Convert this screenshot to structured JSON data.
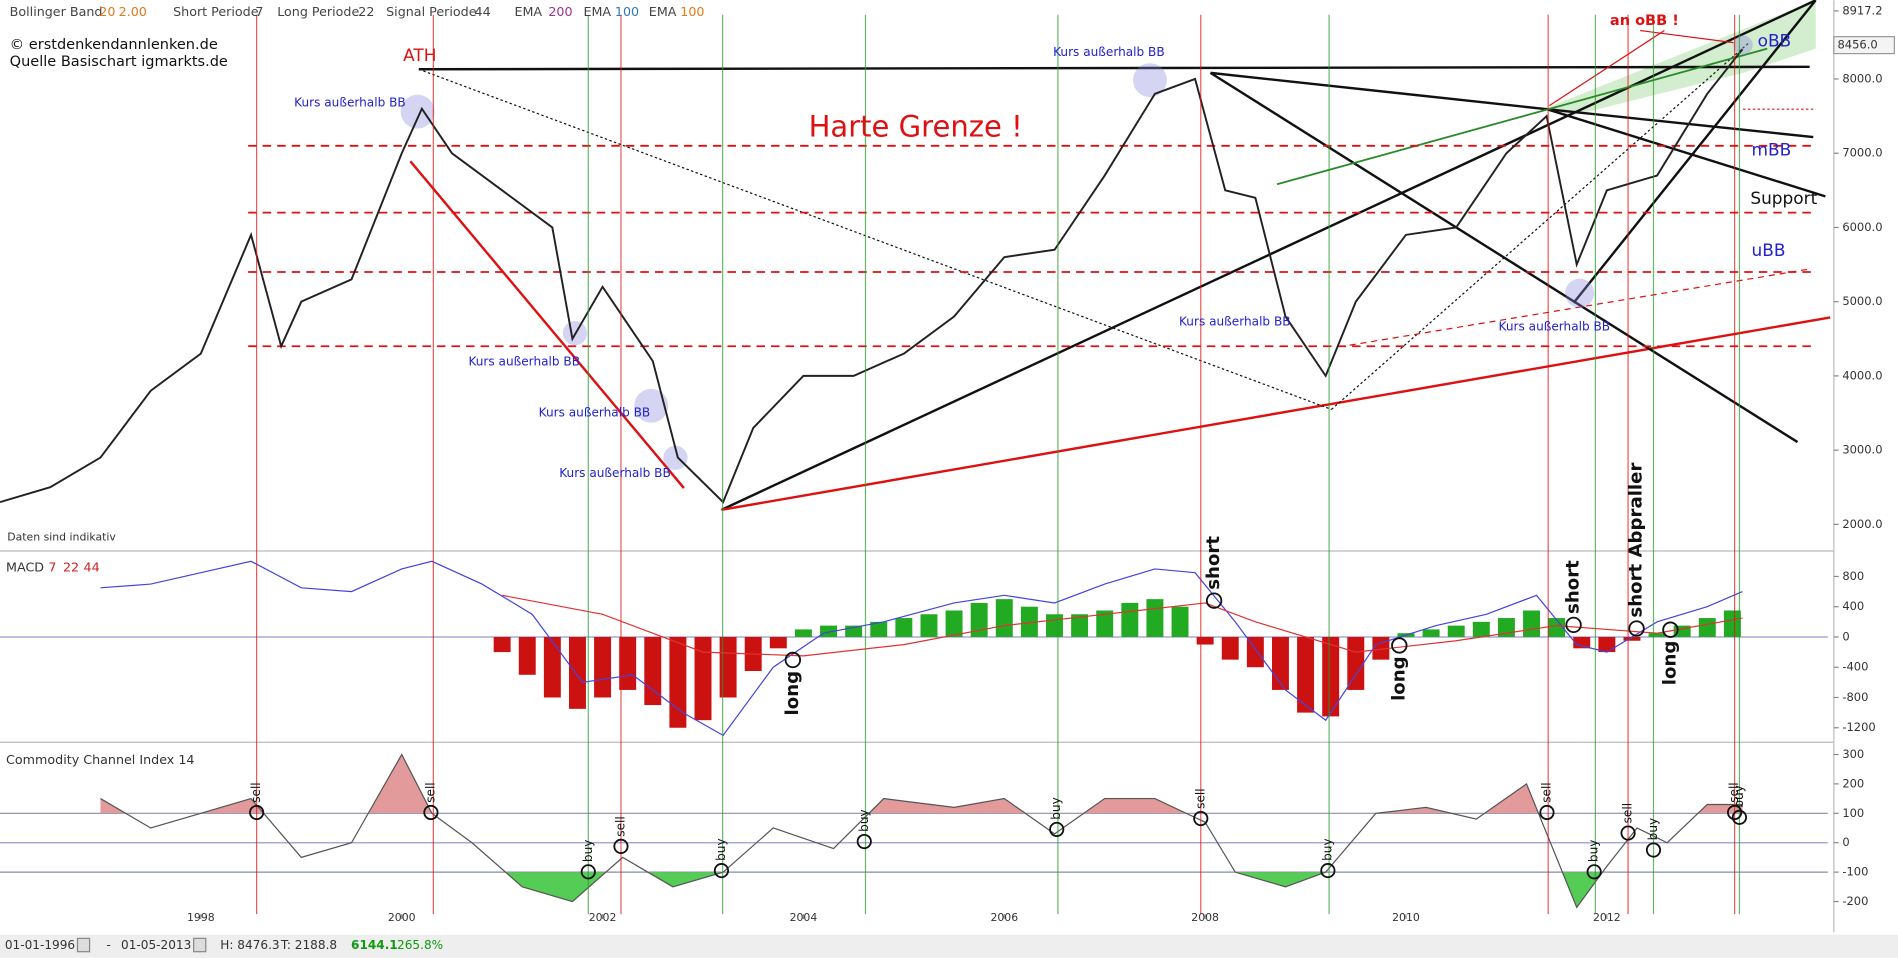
{
  "header": {
    "bollinger": "Bollinger Band",
    "bb_period": "20",
    "bb_dev": "2.00",
    "short_label": "Short Periode",
    "short_val": "7",
    "long_label": "Long Periode",
    "long_val": "22",
    "signal_label": "Signal Periode",
    "signal_val": "44",
    "ema1": "EMA",
    "ema1_val": "200",
    "ema2": "EMA",
    "ema2_val": "100",
    "ema3": "EMA",
    "ema3_val": "100",
    "copyright": "© erstdenkendannlenken.de",
    "source": "Quelle Basischart igmarkts.de",
    "disclaimer": "Daten sind indikativ"
  },
  "annotations": {
    "ath": "ATH",
    "harte_grenze": "Harte Grenze !",
    "an_obb": "an oBB !",
    "obb": "oBB",
    "mbb": "mBB",
    "ubb": "uBB",
    "support": "Support",
    "kurs": [
      "Kurs außerhalb BB",
      "Kurs außerhalb BB",
      "Kurs außerhalb BB",
      "Kurs außerhalb BB",
      "Kurs außerhalb BB",
      "Kurs außerhalb BB",
      "Kurs außerhalb BB"
    ],
    "macd_signals": [
      "long",
      "short",
      "long",
      "short",
      "short Abpraller",
      "long"
    ],
    "cci_signals": [
      "sell",
      "sell",
      "buy",
      "sell",
      "buy",
      "buy",
      "buy",
      "sell",
      "buy",
      "sell",
      "buy",
      "sell",
      "buy",
      "sell",
      "buy"
    ]
  },
  "chart_data": [
    {
      "type": "line",
      "color": "#222222",
      "x": [
        1996.0,
        1996.5,
        1997.0,
        1997.5,
        1998.0,
        1998.5,
        1998.8,
        1999.0,
        1999.5,
        2000.0,
        2000.2,
        2000.5,
        2001.0,
        2001.5,
        2001.7,
        2002.0,
        2002.5,
        2002.75,
        2003.2,
        2003.5,
        2004.0,
        2004.5,
        2005.0,
        2005.5,
        2006.0,
        2006.5,
        2007.0,
        2007.5,
        2007.9,
        2008.2,
        2008.5,
        2008.8,
        2009.2,
        2009.5,
        2010.0,
        2010.5,
        2011.0,
        2011.4,
        2011.7,
        2012.0,
        2012.5,
        2013.0,
        2013.35
      ],
      "values": [
        2300,
        2500,
        2900,
        3800,
        4300,
        5900,
        4400,
        5000,
        5300,
        7000,
        7600,
        7000,
        6500,
        6000,
        4500,
        5200,
        4200,
        2900,
        2300,
        3300,
        4000,
        4000,
        4300,
        4800,
        5600,
        5700,
        6700,
        7800,
        8000,
        6500,
        6400,
        4800,
        4000,
        5000,
        5900,
        6000,
        7000,
        7500,
        5500,
        6500,
        6700,
        7800,
        8400
      ],
      "xlim": [
        1996,
        2014.2
      ],
      "xticks": [
        1998,
        2000,
        2002,
        2004,
        2006,
        2008,
        2010,
        2012
      ],
      "ylim": [
        1690,
        8930
      ],
      "yticks": [
        {
          "value": 2000,
          "label": "2000.0"
        },
        {
          "value": 3000,
          "label": "3000.0"
        },
        {
          "value": 4000,
          "label": "4000.0"
        },
        {
          "value": 5000,
          "label": "5000.0"
        },
        {
          "value": 6000,
          "label": "6000.0"
        },
        {
          "value": 7000,
          "label": "7000.0"
        },
        {
          "value": 8000,
          "label": "8000.0"
        },
        {
          "value": 8917.2,
          "label": "8917.2"
        }
      ],
      "last_price": {
        "value": 8456,
        "label": "8456.0"
      },
      "hlines": [
        7100,
        6200,
        5400,
        4400
      ],
      "footer": {
        "from": "01-01-1996",
        "dash": "-",
        "to": "01-05-2013",
        "high": "H: 8476.3",
        "low": "T: 2188.8",
        "change": "6144.1",
        "change_pct": "265.8%"
      }
    },
    {
      "type": "bar",
      "title": "MACD",
      "params": [
        "7",
        "22",
        "44"
      ],
      "pos_color": "#22aa22",
      "neg_color": "#cc1111",
      "x": [
        2001.0,
        2001.25,
        2001.5,
        2001.75,
        2002.0,
        2002.25,
        2002.5,
        2002.75,
        2003.0,
        2003.25,
        2003.5,
        2003.75,
        2004.0,
        2004.25,
        2004.5,
        2004.75,
        2005.0,
        2005.25,
        2005.5,
        2005.75,
        2006.0,
        2006.25,
        2006.5,
        2006.75,
        2007.0,
        2007.25,
        2007.5,
        2007.75,
        2008.0,
        2008.25,
        2008.5,
        2008.75,
        2009.0,
        2009.25,
        2009.5,
        2009.75,
        2010.0,
        2010.25,
        2010.5,
        2010.75,
        2011.0,
        2011.25,
        2011.5,
        2011.75,
        2012.0,
        2012.25,
        2012.5,
        2012.75,
        2013.0,
        2013.25
      ],
      "values": [
        -200,
        -500,
        -800,
        -950,
        -800,
        -700,
        -900,
        -1200,
        -1100,
        -800,
        -450,
        -150,
        100,
        150,
        150,
        200,
        250,
        300,
        350,
        450,
        500,
        400,
        300,
        300,
        350,
        450,
        500,
        400,
        -100,
        -300,
        -400,
        -700,
        -1000,
        -1050,
        -700,
        -300,
        50,
        100,
        150,
        200,
        250,
        350,
        250,
        -150,
        -200,
        -50,
        50,
        150,
        250,
        350
      ],
      "lines": [
        {
          "color": "#4444dd",
          "x": [
            1997.0,
            1997.5,
            1998.0,
            1998.5,
            1999.0,
            1999.5,
            2000.0,
            2000.3,
            2000.8,
            2001.3,
            2001.8,
            2002.3,
            2002.8,
            2003.2,
            2003.7,
            2004.2,
            2004.8,
            2005.5,
            2006.0,
            2006.5,
            2007.0,
            2007.5,
            2007.9,
            2008.3,
            2008.8,
            2009.2,
            2009.7,
            2010.3,
            2010.8,
            2011.3,
            2011.7,
            2012.0,
            2012.5,
            2013.0,
            2013.35
          ],
          "values": [
            650,
            700,
            850,
            1000,
            650,
            600,
            900,
            1000,
            700,
            300,
            -600,
            -500,
            -1000,
            -1300,
            -400,
            50,
            200,
            450,
            550,
            450,
            700,
            900,
            850,
            200,
            -700,
            -1100,
            -100,
            150,
            300,
            550,
            -100,
            -200,
            200,
            400,
            600
          ]
        },
        {
          "color": "#dd3333",
          "x": [
            2001.0,
            2002.0,
            2003.0,
            2004.0,
            2005.0,
            2006.0,
            2007.0,
            2008.0,
            2008.5,
            2009.5,
            2010.5,
            2011.5,
            2012.5,
            2013.35
          ],
          "values": [
            550,
            300,
            -200,
            -250,
            -100,
            150,
            300,
            450,
            200,
            -200,
            -50,
            150,
            50,
            250
          ]
        }
      ],
      "xlim": [
        1996,
        2014.2
      ],
      "ylim": [
        -1376,
        1024
      ],
      "yticks": [
        800,
        400,
        0,
        -400,
        -800,
        -1200
      ]
    },
    {
      "type": "line",
      "title": "Commodity Channel Index 14",
      "color": "#555555",
      "over_color": "#e39a9a",
      "under_color": "#55cc55",
      "x": [
        1997.0,
        1997.5,
        1998.0,
        1998.5,
        1999.0,
        1999.5,
        2000.0,
        2000.3,
        2000.7,
        2001.2,
        2001.7,
        2002.2,
        2002.7,
        2003.2,
        2003.7,
        2004.3,
        2004.8,
        2005.5,
        2006.0,
        2006.5,
        2007.0,
        2007.5,
        2008.0,
        2008.3,
        2008.8,
        2009.2,
        2009.7,
        2010.2,
        2010.7,
        2011.2,
        2011.7,
        2012.0,
        2012.3,
        2012.6,
        2013.0,
        2013.35
      ],
      "values": [
        150,
        50,
        100,
        150,
        -50,
        0,
        300,
        100,
        0,
        -150,
        -200,
        -50,
        -150,
        -100,
        50,
        -20,
        150,
        120,
        150,
        30,
        150,
        150,
        70,
        -100,
        -150,
        -100,
        100,
        120,
        80,
        200,
        -220,
        -80,
        50,
        0,
        130,
        130
      ],
      "xlim": [
        1996,
        2014.2
      ],
      "ylim": [
        -243,
        321
      ],
      "yticks": [
        300,
        200,
        100,
        0,
        -100,
        -200
      ],
      "hlines": [
        100,
        -100
      ]
    }
  ]
}
